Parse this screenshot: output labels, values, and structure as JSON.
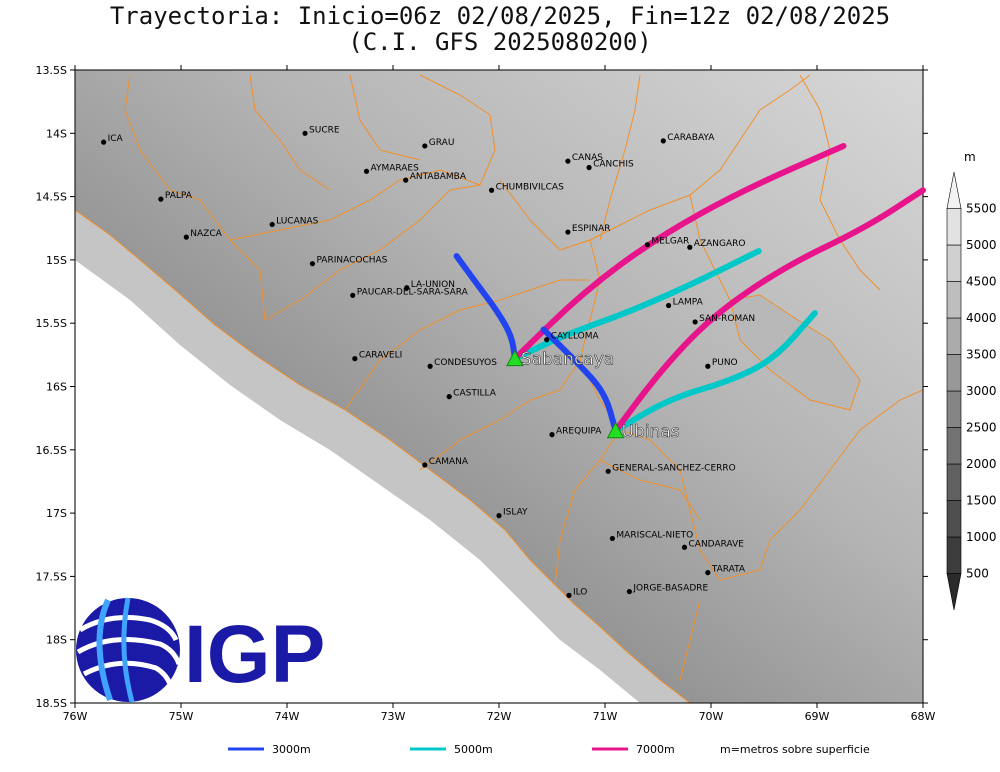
{
  "header": {
    "title_line1": "Trayectoria: Inicio=06z 02/08/2025, Fin=12z 02/08/2025",
    "title_line2": "(C.I. GFS 2025080200)"
  },
  "axes": {
    "lat_labels": [
      "13.5S",
      "14S",
      "14.5S",
      "15S",
      "15.5S",
      "16S",
      "16.5S",
      "17S",
      "17.5S",
      "18S",
      "18.5S"
    ],
    "lon_labels": [
      "76W",
      "75W",
      "74W",
      "73W",
      "72W",
      "71W",
      "70W",
      "69W",
      "68W"
    ]
  },
  "places": [
    {
      "name": "ICA",
      "lon": -75.73,
      "lat": -14.07
    },
    {
      "name": "SUCRE",
      "lon": -73.83,
      "lat": -14.0
    },
    {
      "name": "GRAU",
      "lon": -72.7,
      "lat": -14.1
    },
    {
      "name": "CANAS",
      "lon": -71.35,
      "lat": -14.22
    },
    {
      "name": "CANCHIS",
      "lon": -71.15,
      "lat": -14.27
    },
    {
      "name": "CARABAYA",
      "lon": -70.45,
      "lat": -14.06
    },
    {
      "name": "AYMARAES",
      "lon": -73.25,
      "lat": -14.3
    },
    {
      "name": "ANTABAMBA",
      "lon": -72.88,
      "lat": -14.37
    },
    {
      "name": "CHUMBIVILCAS",
      "lon": -72.07,
      "lat": -14.45
    },
    {
      "name": "PALPA",
      "lon": -75.19,
      "lat": -14.52
    },
    {
      "name": "LUCANAS",
      "lon": -74.14,
      "lat": -14.72
    },
    {
      "name": "NAZCA",
      "lon": -74.95,
      "lat": -14.82
    },
    {
      "name": "ESPINAR",
      "lon": -71.35,
      "lat": -14.78
    },
    {
      "name": "MELGAR",
      "lon": -70.6,
      "lat": -14.88
    },
    {
      "name": "AZANGARO",
      "lon": -70.2,
      "lat": -14.9
    },
    {
      "name": "PARINACOCHAS",
      "lon": -73.76,
      "lat": -15.03
    },
    {
      "name": "LA-UNION",
      "lon": -72.87,
      "lat": -15.22
    },
    {
      "name": "PAUCAR-DEL-SARA-SARA",
      "lon": -73.38,
      "lat": -15.28
    },
    {
      "name": "LAMPA",
      "lon": -70.4,
      "lat": -15.36
    },
    {
      "name": "SAN-ROMAN",
      "lon": -70.15,
      "lat": -15.49
    },
    {
      "name": "CAYLLOMA",
      "lon": -71.55,
      "lat": -15.63
    },
    {
      "name": "CARAVELI",
      "lon": -73.36,
      "lat": -15.78
    },
    {
      "name": "CONDESUYOS",
      "lon": -72.65,
      "lat": -15.84
    },
    {
      "name": "PUNO",
      "lon": -70.03,
      "lat": -15.84
    },
    {
      "name": "CASTILLA",
      "lon": -72.47,
      "lat": -16.08
    },
    {
      "name": "AREQUIPA",
      "lon": -71.5,
      "lat": -16.38
    },
    {
      "name": "GENERAL-SANCHEZ-CERRO",
      "lon": -70.97,
      "lat": -16.67
    },
    {
      "name": "CAMANA",
      "lon": -72.7,
      "lat": -16.62
    },
    {
      "name": "ISLAY",
      "lon": -72.0,
      "lat": -17.02
    },
    {
      "name": "MARISCAL-NIETO",
      "lon": -70.93,
      "lat": -17.2
    },
    {
      "name": "CANDARAVE",
      "lon": -70.25,
      "lat": -17.27
    },
    {
      "name": "TARATA",
      "lon": -70.03,
      "lat": -17.47
    },
    {
      "name": "ILO",
      "lon": -71.34,
      "lat": -17.65
    },
    {
      "name": "JORGE-BASADRE",
      "lon": -70.77,
      "lat": -17.62
    }
  ],
  "volcanoes": [
    {
      "name": "Sabancaya",
      "lon": -71.85,
      "lat": -15.78
    },
    {
      "name": "Ubinas",
      "lon": -70.9,
      "lat": -16.35
    }
  ],
  "trajectories": [
    {
      "volcano": "Sabancaya",
      "level": "3000m",
      "color": "#2244ee",
      "path": [
        [
          -71.85,
          -15.78
        ],
        [
          -71.88,
          -15.6
        ],
        [
          -72.02,
          -15.4
        ],
        [
          -72.2,
          -15.2
        ],
        [
          -72.4,
          -14.97
        ]
      ]
    },
    {
      "volcano": "Sabancaya",
      "level": "5000m",
      "color": "#00c8c8",
      "path": [
        [
          -71.85,
          -15.78
        ],
        [
          -71.4,
          -15.6
        ],
        [
          -70.8,
          -15.42
        ],
        [
          -70.2,
          -15.2
        ],
        [
          -69.55,
          -14.93
        ]
      ]
    },
    {
      "volcano": "Sabancaya",
      "level": "7000m",
      "color": "#e8148c",
      "path": [
        [
          -71.85,
          -15.78
        ],
        [
          -71.2,
          -15.25
        ],
        [
          -70.5,
          -14.82
        ],
        [
          -69.7,
          -14.45
        ],
        [
          -68.75,
          -14.1
        ]
      ]
    },
    {
      "volcano": "Ubinas",
      "level": "3000m",
      "color": "#2244ee",
      "path": [
        [
          -70.9,
          -16.35
        ],
        [
          -71.0,
          -16.05
        ],
        [
          -71.25,
          -15.82
        ],
        [
          -71.58,
          -15.55
        ]
      ]
    },
    {
      "volcano": "Ubinas",
      "level": "5000m",
      "color": "#00c8c8",
      "path": [
        [
          -70.9,
          -16.35
        ],
        [
          -70.4,
          -16.1
        ],
        [
          -69.8,
          -15.95
        ],
        [
          -69.4,
          -15.78
        ],
        [
          -69.02,
          -15.42
        ]
      ]
    },
    {
      "volcano": "Ubinas",
      "level": "7000m",
      "color": "#e8148c",
      "path": [
        [
          -70.9,
          -16.35
        ],
        [
          -70.5,
          -15.9
        ],
        [
          -70.0,
          -15.45
        ],
        [
          -69.3,
          -15.05
        ],
        [
          -68.55,
          -14.75
        ],
        [
          -68.0,
          -14.45
        ]
      ]
    }
  ],
  "colorbar": {
    "unit": "m",
    "labels": [
      "500",
      "1000",
      "1500",
      "2000",
      "2500",
      "3000",
      "3500",
      "4000",
      "4500",
      "5000",
      "5500"
    ],
    "colors": [
      "#2a2a2a",
      "#3c3c3c",
      "#4e4e4e",
      "#606060",
      "#727272",
      "#858585",
      "#989898",
      "#ababab",
      "#bebebe",
      "#d0d0d0",
      "#e2e2e2",
      "#f2f2f2"
    ]
  },
  "legend": {
    "items": [
      {
        "label": "3000m",
        "color": "#2244ee"
      },
      {
        "label": "5000m",
        "color": "#00c8c8"
      },
      {
        "label": "7000m",
        "color": "#e8148c"
      }
    ],
    "note": "m=metros sobre superficie"
  },
  "logo": {
    "text": "IGP",
    "color": "#1a1aa6"
  },
  "map_colors": {
    "border": "#f0902a",
    "ocean": "#ffffff"
  }
}
